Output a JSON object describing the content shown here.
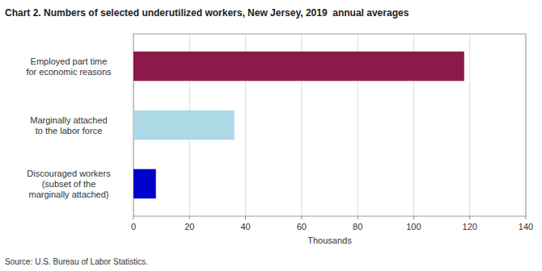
{
  "chart_data": {
    "type": "bar",
    "orientation": "horizontal",
    "title": "Chart 2. Numbers of selected underutilized workers, New Jersey, 2019  annual averages",
    "categories": [
      "Discouraged workers\n(subset of the\nmarginally attached)",
      "Marginally attached\nto the labor force",
      "Employed part time\nfor economic reasons"
    ],
    "values": [
      8,
      36,
      118
    ],
    "colors": [
      "#0000cc",
      "#add8e6",
      "#8b1a4a"
    ],
    "xlabel": "Thousands",
    "xlim": [
      0,
      140
    ],
    "xticks": [
      0,
      20,
      40,
      60,
      80,
      100,
      120,
      140
    ],
    "grid": true,
    "source": "Source: U.S. Bureau of Labor Statistics."
  }
}
